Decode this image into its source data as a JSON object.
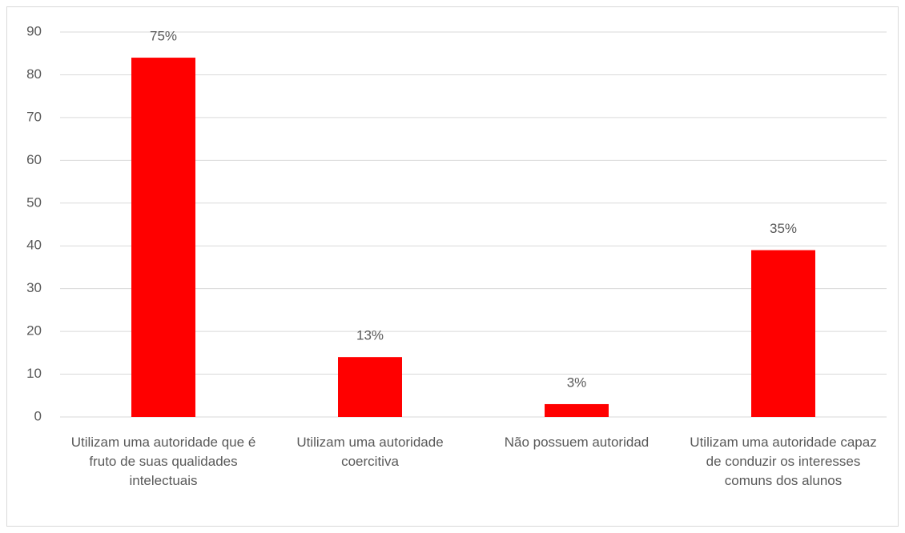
{
  "chart_data": {
    "type": "bar",
    "categories": [
      "Utilizam uma autoridade que é fruto de suas qualidades intelectuais",
      "Utilizam uma autoridade coercitiva",
      "Não possuem autoridad",
      "Utilizam uma autoridade capaz de conduzir os interesses comuns dos alunos"
    ],
    "values": [
      84,
      14,
      3,
      39
    ],
    "annotations": [
      "75%",
      "13%",
      "3%",
      "35%"
    ],
    "color": "#ff0000",
    "ylim": [
      0,
      90
    ],
    "yticks": [
      0,
      10,
      20,
      30,
      40,
      50,
      60,
      70,
      80,
      90
    ],
    "grid": true
  }
}
